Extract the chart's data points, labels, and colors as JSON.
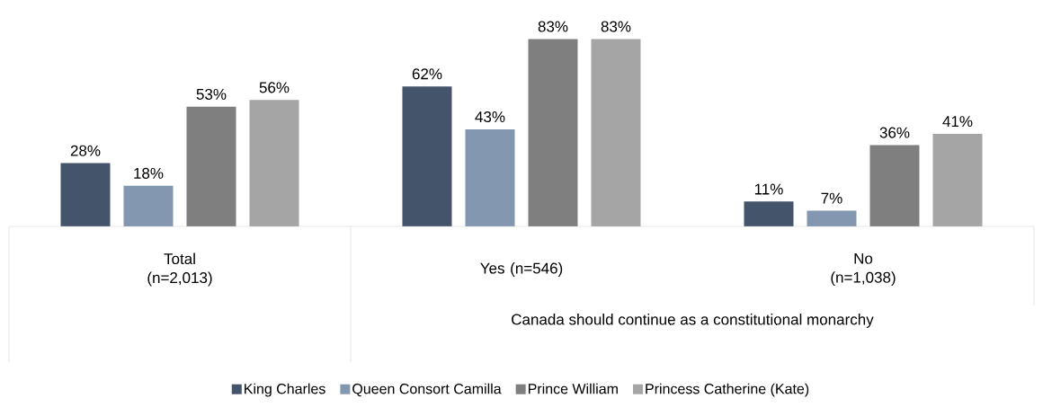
{
  "chart_data": {
    "type": "bar",
    "categories": [
      "Total (n=2,013)",
      "Yes (n=546)",
      "No (n=1,038)"
    ],
    "annotations": [
      "Canada should continue as a constitutional monarchy"
    ],
    "series": [
      {
        "name": "King Charles",
        "color": "#44546a",
        "values": [
          28,
          62,
          11
        ],
        "value_labels": [
          "28%",
          "62%",
          "11%"
        ]
      },
      {
        "name": "Queen Consort Camilla",
        "color": "#8497b0",
        "values": [
          18,
          43,
          7
        ],
        "value_labels": [
          "18%",
          "43%",
          "7%"
        ]
      },
      {
        "name": "Prince William",
        "color": "#7f7f7f",
        "values": [
          53,
          83,
          36
        ],
        "value_labels": [
          "53%",
          "83%",
          "36%"
        ]
      },
      {
        "name": "Princess Catherine (Kate)",
        "color": "#a5a5a5",
        "values": [
          56,
          83,
          41
        ],
        "value_labels": [
          "56%",
          "83%",
          "41%"
        ]
      }
    ],
    "legend": "bottom"
  }
}
